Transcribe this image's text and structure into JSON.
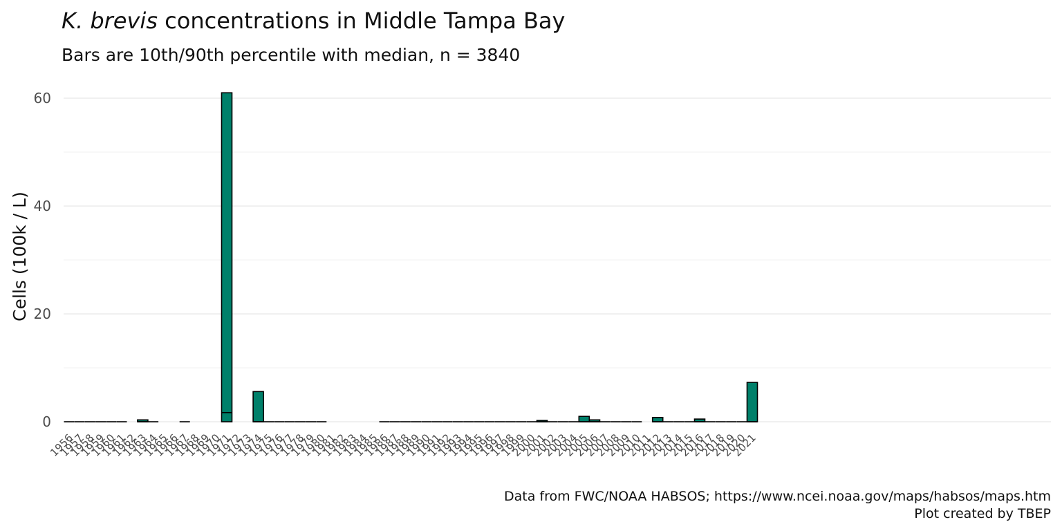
{
  "title": {
    "italic": "K. brevis",
    "rest": " concentrations in Middle Tampa Bay"
  },
  "subtitle": "Bars are 10th/90th percentile with median, n = 3840",
  "caption": {
    "line1": "Data from FWC/NOAA HABSOS; https://www.ncei.noaa.gov/maps/habsos/maps.htm",
    "line2": "Plot created by TBEP"
  },
  "colors": {
    "bar": "#00806a",
    "outline": "#000000"
  },
  "chart_data": {
    "type": "bar",
    "ylabel": "Cells (100k / L)",
    "xlabel": "",
    "ylim": [
      0,
      62
    ],
    "yticks": [
      0,
      20,
      40,
      60
    ],
    "grid": true,
    "categories": [
      "1956",
      "1957",
      "1958",
      "1959",
      "1960",
      "1961",
      "1962",
      "1963",
      "1964",
      "1965",
      "1966",
      "1967",
      "1968",
      "1969",
      "1970",
      "1971",
      "1972",
      "1973",
      "1974",
      "1975",
      "1976",
      "1977",
      "1978",
      "1979",
      "1980",
      "1981",
      "1982",
      "1983",
      "1984",
      "1985",
      "1986",
      "1987",
      "1988",
      "1989",
      "1990",
      "1991",
      "1992",
      "1993",
      "1994",
      "1995",
      "1996",
      "1997",
      "1998",
      "1999",
      "2000",
      "2001",
      "2002",
      "2003",
      "2004",
      "2005",
      "2006",
      "2007",
      "2008",
      "2009",
      "2010",
      "2011",
      "2012",
      "2013",
      "2014",
      "2015",
      "2016",
      "2017",
      "2018",
      "2019",
      "2020",
      "2021"
    ],
    "bars": [
      {
        "year": "1956",
        "p10": 0,
        "median": 0,
        "p90": 0
      },
      {
        "year": "1957",
        "p10": 0,
        "median": 0,
        "p90": 0
      },
      {
        "year": "1958",
        "p10": 0,
        "median": 0,
        "p90": 0
      },
      {
        "year": "1959",
        "p10": 0,
        "median": 0,
        "p90": 0
      },
      {
        "year": "1960",
        "p10": 0,
        "median": 0,
        "p90": 0
      },
      {
        "year": "1961",
        "p10": 0,
        "median": 0,
        "p90": 0
      },
      {
        "year": "1963",
        "p10": 0,
        "median": 0,
        "p90": 0.35
      },
      {
        "year": "1964",
        "p10": 0,
        "median": 0,
        "p90": 0
      },
      {
        "year": "1967",
        "p10": 0,
        "median": 0,
        "p90": 0
      },
      {
        "year": "1971",
        "p10": 0,
        "median": 1.7,
        "p90": 61
      },
      {
        "year": "1974",
        "p10": 0,
        "median": 0,
        "p90": 5.6
      },
      {
        "year": "1975",
        "p10": 0,
        "median": 0,
        "p90": 0
      },
      {
        "year": "1976",
        "p10": 0,
        "median": 0,
        "p90": 0
      },
      {
        "year": "1977",
        "p10": 0,
        "median": 0,
        "p90": 0
      },
      {
        "year": "1978",
        "p10": 0,
        "median": 0,
        "p90": 0
      },
      {
        "year": "1979",
        "p10": 0,
        "median": 0,
        "p90": 0
      },
      {
        "year": "1980",
        "p10": 0,
        "median": 0,
        "p90": 0
      },
      {
        "year": "1986",
        "p10": 0,
        "median": 0,
        "p90": 0
      },
      {
        "year": "1987",
        "p10": 0,
        "median": 0,
        "p90": 0
      },
      {
        "year": "1988",
        "p10": 0,
        "median": 0,
        "p90": 0
      },
      {
        "year": "1989",
        "p10": 0,
        "median": 0,
        "p90": 0
      },
      {
        "year": "1990",
        "p10": 0,
        "median": 0,
        "p90": 0
      },
      {
        "year": "1991",
        "p10": 0,
        "median": 0,
        "p90": 0
      },
      {
        "year": "1992",
        "p10": 0,
        "median": 0,
        "p90": 0
      },
      {
        "year": "1993",
        "p10": 0,
        "median": 0,
        "p90": 0
      },
      {
        "year": "1994",
        "p10": 0,
        "median": 0,
        "p90": 0
      },
      {
        "year": "1995",
        "p10": 0,
        "median": 0,
        "p90": 0
      },
      {
        "year": "1996",
        "p10": 0,
        "median": 0,
        "p90": 0
      },
      {
        "year": "1997",
        "p10": 0,
        "median": 0,
        "p90": 0
      },
      {
        "year": "1998",
        "p10": 0,
        "median": 0,
        "p90": 0
      },
      {
        "year": "1999",
        "p10": 0,
        "median": 0,
        "p90": 0
      },
      {
        "year": "2000",
        "p10": 0,
        "median": 0,
        "p90": 0
      },
      {
        "year": "2001",
        "p10": 0,
        "median": 0,
        "p90": 0.25
      },
      {
        "year": "2002",
        "p10": 0,
        "median": 0,
        "p90": 0
      },
      {
        "year": "2003",
        "p10": 0,
        "median": 0,
        "p90": 0
      },
      {
        "year": "2004",
        "p10": 0,
        "median": 0,
        "p90": 0
      },
      {
        "year": "2005",
        "p10": 0,
        "median": 0,
        "p90": 1.0
      },
      {
        "year": "2006",
        "p10": 0,
        "median": 0,
        "p90": 0.35
      },
      {
        "year": "2007",
        "p10": 0,
        "median": 0,
        "p90": 0
      },
      {
        "year": "2008",
        "p10": 0,
        "median": 0,
        "p90": 0
      },
      {
        "year": "2009",
        "p10": 0,
        "median": 0,
        "p90": 0
      },
      {
        "year": "2010",
        "p10": 0,
        "median": 0,
        "p90": 0
      },
      {
        "year": "2012",
        "p10": 0,
        "median": 0,
        "p90": 0.8
      },
      {
        "year": "2013",
        "p10": 0,
        "median": 0,
        "p90": 0
      },
      {
        "year": "2014",
        "p10": 0,
        "median": 0,
        "p90": 0
      },
      {
        "year": "2015",
        "p10": 0,
        "median": 0,
        "p90": 0
      },
      {
        "year": "2016",
        "p10": 0,
        "median": 0,
        "p90": 0.5
      },
      {
        "year": "2017",
        "p10": 0,
        "median": 0,
        "p90": 0
      },
      {
        "year": "2018",
        "p10": 0,
        "median": 0,
        "p90": 0
      },
      {
        "year": "2019",
        "p10": 0,
        "median": 0,
        "p90": 0
      },
      {
        "year": "2020",
        "p10": 0,
        "median": 0,
        "p90": 0
      },
      {
        "year": "2021",
        "p10": 0,
        "median": 0,
        "p90": 7.3
      }
    ]
  }
}
